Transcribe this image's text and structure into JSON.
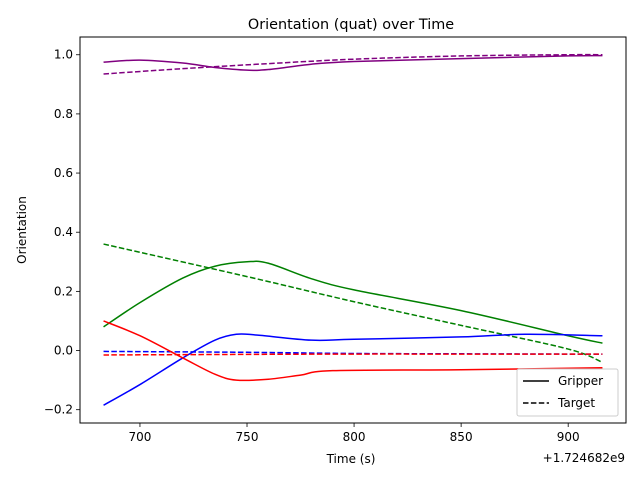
{
  "chart_data": {
    "type": "line",
    "title": "Orientation (quat) over Time",
    "xlabel": "Time (s)",
    "ylabel": "Orientation",
    "x_offset_label": "+1.724682e9",
    "xlim": [
      672,
      927
    ],
    "ylim": [
      -0.245,
      1.06
    ],
    "x_ticks": [
      700,
      750,
      800,
      850,
      900
    ],
    "y_ticks": [
      -0.2,
      0.0,
      0.2,
      0.4,
      0.6,
      0.8,
      1.0
    ],
    "y_tick_labels": [
      "−0.2",
      "0.0",
      "0.2",
      "0.4",
      "0.6",
      "0.8",
      "1.0"
    ],
    "grid": false,
    "legend_position": "lower-right",
    "legend": [
      {
        "label": "Gripper",
        "style": "solid"
      },
      {
        "label": "Target",
        "style": "dashed"
      }
    ],
    "series": [
      {
        "color": "#800080",
        "style": "solid",
        "x": [
          683,
          700,
          720,
          735,
          750,
          760,
          780,
          800,
          850,
          900,
          916
        ],
        "y": [
          0.975,
          0.982,
          0.972,
          0.957,
          0.948,
          0.95,
          0.968,
          0.977,
          0.987,
          0.996,
          0.997
        ]
      },
      {
        "color": "#800080",
        "style": "dashed",
        "x": [
          683,
          720,
          760,
          800,
          850,
          900,
          916
        ],
        "y": [
          0.935,
          0.953,
          0.97,
          0.985,
          0.996,
          1.0,
          1.0
        ]
      },
      {
        "color": "#008000",
        "style": "solid",
        "x": [
          683,
          700,
          720,
          735,
          750,
          760,
          780,
          800,
          850,
          900,
          916
        ],
        "y": [
          0.08,
          0.162,
          0.245,
          0.285,
          0.3,
          0.295,
          0.243,
          0.205,
          0.135,
          0.05,
          0.025
        ]
      },
      {
        "color": "#008000",
        "style": "dashed",
        "x": [
          683,
          750,
          800,
          850,
          900,
          916
        ],
        "y": [
          0.36,
          0.25,
          0.165,
          0.085,
          0.005,
          -0.04
        ]
      },
      {
        "color": "#0000ff",
        "style": "solid",
        "x": [
          683,
          700,
          720,
          735,
          745,
          755,
          780,
          800,
          850,
          880,
          916
        ],
        "y": [
          -0.185,
          -0.115,
          -0.025,
          0.035,
          0.055,
          0.052,
          0.035,
          0.038,
          0.046,
          0.055,
          0.05
        ]
      },
      {
        "color": "#0000ff",
        "style": "dashed",
        "x": [
          683,
          750,
          800,
          850,
          900,
          916
        ],
        "y": [
          -0.003,
          -0.006,
          -0.01,
          -0.011,
          -0.012,
          -0.012
        ]
      },
      {
        "color": "#ff0000",
        "style": "solid",
        "x": [
          683,
          700,
          720,
          735,
          745,
          760,
          775,
          790,
          850,
          916
        ],
        "y": [
          0.1,
          0.05,
          -0.025,
          -0.08,
          -0.1,
          -0.097,
          -0.083,
          -0.068,
          -0.065,
          -0.058
        ]
      },
      {
        "color": "#ff0000",
        "style": "dashed",
        "x": [
          683,
          750,
          800,
          850,
          916
        ],
        "y": [
          -0.015,
          -0.013,
          -0.012,
          -0.012,
          -0.012
        ]
      }
    ]
  }
}
